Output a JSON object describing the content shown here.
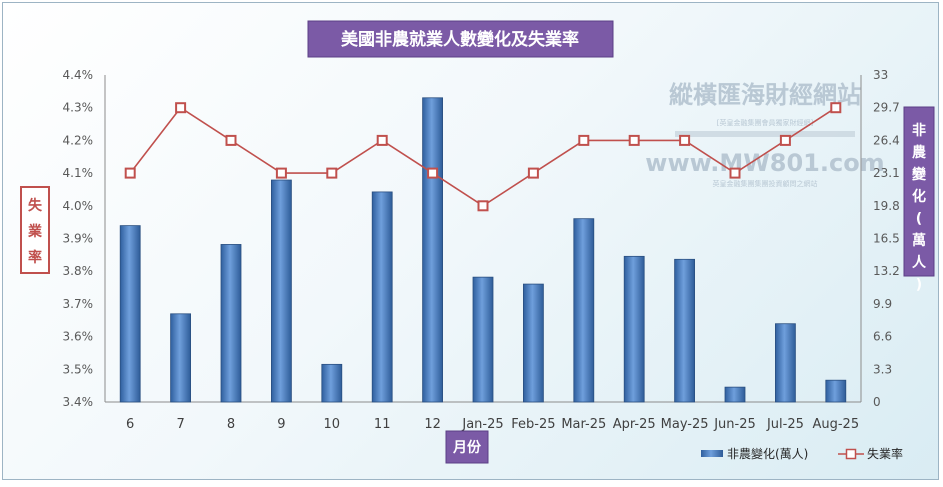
{
  "chart_data": {
    "type": "bar+line",
    "title": "美國非農就業人數變化及失業率",
    "xlabel": "月份",
    "ylabel_left": "失業率",
    "ylabel_right": "非農變化(萬人)",
    "categories": [
      "6",
      "7",
      "8",
      "9",
      "10",
      "11",
      "12",
      "Jan-25",
      "Feb-25",
      "Mar-25",
      "Apr-25",
      "May-25",
      "Jun-25",
      "Jul-25",
      "Aug-25"
    ],
    "series": [
      {
        "name": "非農變化(萬人)",
        "type": "bar",
        "axis": "right",
        "color": "#4a7fc1",
        "values": [
          17.8,
          8.9,
          15.9,
          22.4,
          3.8,
          21.2,
          30.7,
          12.6,
          11.9,
          18.5,
          14.7,
          14.4,
          1.5,
          7.9,
          2.2
        ]
      },
      {
        "name": "失業率",
        "type": "line",
        "axis": "left",
        "color": "#c0504d",
        "values": [
          4.1,
          4.3,
          4.2,
          4.1,
          4.1,
          4.2,
          4.1,
          4.0,
          4.1,
          4.2,
          4.2,
          4.2,
          4.1,
          4.2,
          4.3
        ]
      }
    ],
    "y_left": {
      "min": 3.4,
      "max": 4.4,
      "ticks": [
        "3.4%",
        "3.5%",
        "3.6%",
        "3.7%",
        "3.8%",
        "3.9%",
        "4.0%",
        "4.1%",
        "4.2%",
        "4.3%",
        "4.4%"
      ]
    },
    "y_right": {
      "min": 0,
      "max": 33,
      "ticks": [
        "0",
        "3.3",
        "6.6",
        "9.9",
        "13.2",
        "16.5",
        "19.8",
        "23.1",
        "26.4",
        "29.7",
        "33"
      ]
    },
    "grid": false,
    "legend_position": "bottom-right",
    "legend": [
      "非農變化(萬人)",
      "失業率"
    ]
  },
  "watermark": {
    "cn_name": "縱橫匯海財經網站",
    "domain": "www.MW801.com",
    "tagline_1": "[英皇金融集團會員獨家財經網]",
    "tagline_2": "英皇金融集團集團投資顧問之網站"
  },
  "colors": {
    "title_bg": "#7b5aa6",
    "left_label_border": "#c0504d",
    "left_label_text": "#c0504d",
    "right_label_bg": "#7b5aa6"
  }
}
